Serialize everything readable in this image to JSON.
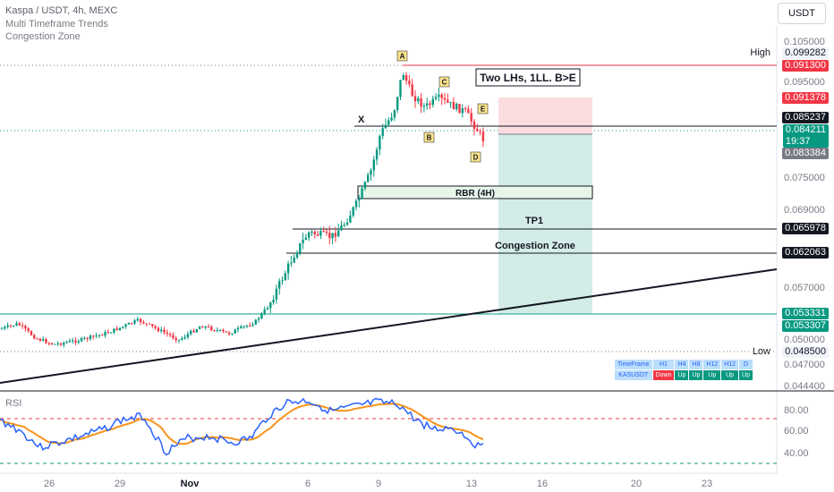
{
  "header": {
    "title": "Kaspa / USDT, 4h, MEXC",
    "indicators": [
      "Multi Timeframe Trends",
      "Congestion Zone"
    ]
  },
  "currency_button": "USDT",
  "chart_data": {
    "type": "candlestick",
    "symbol": "Kaspa / USDT",
    "timeframe": "4h",
    "exchange": "MEXC",
    "price_axis": {
      "ticks": [
        "0.105000",
        "0.095000",
        "0.075000",
        "0.069000",
        "0.057000",
        "0.050000",
        "0.047000",
        "0.044400"
      ],
      "range": [
        0.0436,
        0.1075
      ]
    },
    "time_axis": {
      "ticks": [
        "26",
        "29",
        "Nov",
        "6",
        "9",
        "13",
        "16",
        "20",
        "23"
      ]
    },
    "price_labels": [
      {
        "text": "0.099282",
        "kind": "high",
        "caption": "High",
        "price": 0.099282
      },
      {
        "text": "0.091300",
        "value_text": "0.091300",
        "kind": "red",
        "price": 0.0913
      },
      {
        "text": "0.091378",
        "kind": "red",
        "price": 0.091378
      },
      {
        "text": "0.085237",
        "kind": "black",
        "price": 0.085237
      },
      {
        "text": "0.084211",
        "sub": "19:37",
        "kind": "green",
        "price": 0.084211
      },
      {
        "text": "0.083384",
        "kind": "grey",
        "price": 0.083384
      },
      {
        "text": "0.065978",
        "kind": "black",
        "price": 0.065978
      },
      {
        "text": "0.062063",
        "kind": "black",
        "price": 0.062063
      },
      {
        "text": "0.053331",
        "kind": "green",
        "price": 0.053331
      },
      {
        "text": "0.053307",
        "kind": "green",
        "price": 0.053307
      },
      {
        "text": "0.048500",
        "kind": "low",
        "caption": "Low",
        "price": 0.0485
      }
    ],
    "annotations": {
      "pattern_note": "Two LHs, 1LL. B>E",
      "points": [
        "A",
        "B",
        "C",
        "D",
        "E"
      ],
      "x_mark": "X",
      "zone_label": "RBR (4H)",
      "tp_label": "TP1",
      "congestion_label": "Congestion Zone"
    },
    "rsi": {
      "label": "RSI",
      "ticks": [
        "80.00",
        "60.00",
        "40.00"
      ],
      "overbought": 70,
      "oversold": 30
    }
  },
  "trend_table": {
    "headers": [
      "TimeFrame",
      "H1",
      "H4",
      "H8",
      "H12",
      "H12",
      "D"
    ],
    "row_label": "KASUSDT",
    "values": [
      "Down",
      "Up",
      "Up",
      "Up",
      "Up",
      "Up"
    ]
  },
  "colors": {
    "up": "#089981",
    "down": "#f23645",
    "rsi": "#2962ff",
    "rsi_ma": "#f7931a",
    "stop_zone": "#fbdde0",
    "target_zone": "#d4ece8"
  }
}
